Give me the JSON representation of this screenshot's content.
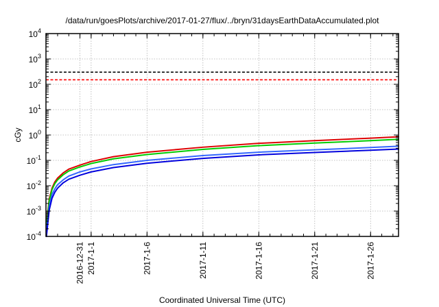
{
  "chart_data": {
    "type": "line",
    "title": "/data/run/goesPlots/archive/2017-01-27/flux/../bryn/31daysEarthDataAccumulated.plot",
    "xlabel": "Coordinated Universal Time (UTC)",
    "ylabel": "cGy",
    "yscale": "log",
    "grid": true,
    "xlim": [
      "2016-12-27T23:00",
      "2017-01-28T12:00"
    ],
    "ylim": [
      0.0001,
      10000
    ],
    "x_ticks": [
      {
        "date": "2016-12-31",
        "label": "2016-12-31"
      },
      {
        "date": "2017-01-01",
        "label": "2017-1-1"
      },
      {
        "date": "2017-01-06",
        "label": "2017-1-6"
      },
      {
        "date": "2017-01-11",
        "label": "2017-1-11"
      },
      {
        "date": "2017-01-16",
        "label": "2017-1-16"
      },
      {
        "date": "2017-01-21",
        "label": "2017-1-21"
      },
      {
        "date": "2017-01-26",
        "label": "2017-1-26"
      }
    ],
    "y_ticks": [
      {
        "value": 0.0001,
        "base": "10",
        "exp": "-4"
      },
      {
        "value": 0.001,
        "base": "10",
        "exp": "-3"
      },
      {
        "value": 0.01,
        "base": "10",
        "exp": "-2"
      },
      {
        "value": 0.1,
        "base": "10",
        "exp": "-1"
      },
      {
        "value": 1,
        "base": "10",
        "exp": "0"
      },
      {
        "value": 10,
        "base": "10",
        "exp": "1"
      },
      {
        "value": 100,
        "base": "10",
        "exp": "2"
      },
      {
        "value": 1000,
        "base": "10",
        "exp": "3"
      },
      {
        "value": 10000,
        "base": "10",
        "exp": "4"
      }
    ],
    "reference_lines": [
      {
        "y": 300,
        "color": "#000000",
        "style": "dashed"
      },
      {
        "y": 150,
        "color": "#ff0000",
        "style": "dashed"
      }
    ],
    "series": [
      {
        "color": "#dd0000",
        "x": [
          "2016-12-28T00:00",
          "2016-12-28T06:00",
          "2016-12-28T12:00",
          "2016-12-28T18:00",
          "2016-12-29T00:00",
          "2016-12-29T12:00",
          "2016-12-30T00:00",
          "2016-12-31T00:00",
          "2017-01-01T00:00",
          "2017-01-03T00:00",
          "2017-01-06T00:00",
          "2017-01-11T00:00",
          "2017-01-16T00:00",
          "2017-01-21T00:00",
          "2017-01-26T00:00",
          "2017-01-28T12:00"
        ],
        "values": [
          0.0003,
          0.003,
          0.008,
          0.014,
          0.02,
          0.032,
          0.045,
          0.065,
          0.09,
          0.14,
          0.21,
          0.33,
          0.47,
          0.6,
          0.75,
          0.85
        ]
      },
      {
        "color": "#00cc00",
        "x": [
          "2016-12-28T00:00",
          "2016-12-28T06:00",
          "2016-12-28T12:00",
          "2016-12-28T18:00",
          "2016-12-29T00:00",
          "2016-12-29T12:00",
          "2016-12-30T00:00",
          "2016-12-31T00:00",
          "2017-01-01T00:00",
          "2017-01-03T00:00",
          "2017-01-06T00:00",
          "2017-01-11T00:00",
          "2017-01-16T00:00",
          "2017-01-21T00:00",
          "2017-01-26T00:00",
          "2017-01-28T12:00"
        ],
        "values": [
          0.00025,
          0.0025,
          0.007,
          0.012,
          0.017,
          0.027,
          0.038,
          0.055,
          0.075,
          0.115,
          0.17,
          0.27,
          0.38,
          0.48,
          0.6,
          0.68
        ]
      },
      {
        "color": "#3366ff",
        "x": [
          "2016-12-28T00:00",
          "2016-12-28T06:00",
          "2016-12-28T12:00",
          "2016-12-28T18:00",
          "2016-12-29T00:00",
          "2016-12-29T12:00",
          "2016-12-30T00:00",
          "2016-12-31T00:00",
          "2017-01-01T00:00",
          "2017-01-03T00:00",
          "2017-01-06T00:00",
          "2017-01-11T00:00",
          "2017-01-16T00:00",
          "2017-01-21T00:00",
          "2017-01-26T00:00",
          "2017-01-28T12:00"
        ],
        "values": [
          0.00015,
          0.0015,
          0.0045,
          0.0075,
          0.011,
          0.017,
          0.024,
          0.035,
          0.046,
          0.068,
          0.1,
          0.155,
          0.21,
          0.26,
          0.32,
          0.36
        ]
      },
      {
        "color": "#0000dd",
        "x": [
          "2016-12-28T00:00",
          "2016-12-28T06:00",
          "2016-12-28T12:00",
          "2016-12-28T18:00",
          "2016-12-29T00:00",
          "2016-12-29T12:00",
          "2016-12-30T00:00",
          "2016-12-31T00:00",
          "2017-01-01T00:00",
          "2017-01-03T00:00",
          "2017-01-06T00:00",
          "2017-01-11T00:00",
          "2017-01-16T00:00",
          "2017-01-21T00:00",
          "2017-01-26T00:00",
          "2017-01-28T12:00"
        ],
        "values": [
          0.0001,
          0.0011,
          0.0032,
          0.0055,
          0.008,
          0.013,
          0.018,
          0.026,
          0.035,
          0.052,
          0.077,
          0.12,
          0.165,
          0.205,
          0.25,
          0.28
        ]
      }
    ]
  }
}
